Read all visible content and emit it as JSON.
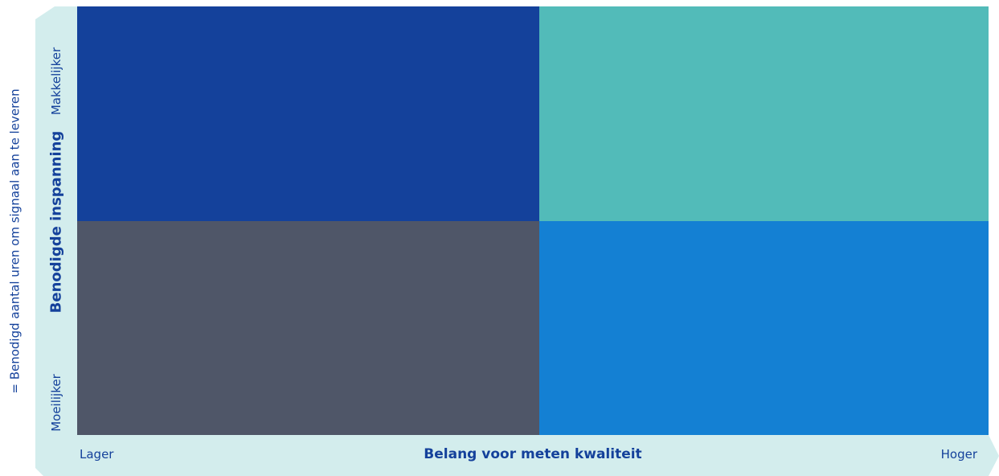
{
  "outer_note": "= Benodigd aantal uren om signaal aan te leveren",
  "y_axis": {
    "title": "Benodigde inspanning",
    "high_label": "Makkelijker",
    "low_label": "Moeilijker"
  },
  "x_axis": {
    "title": "Belang voor meten kwaliteit",
    "low_label": "Lager",
    "high_label": "Hoger"
  },
  "colors": {
    "band": "#d3eded",
    "text": "#14419b",
    "quadrant_top_left": "#14419b",
    "quadrant_top_right": "#52bbb9",
    "quadrant_bottom_left": "#4f5668",
    "quadrant_bottom_right": "#1480d3"
  }
}
